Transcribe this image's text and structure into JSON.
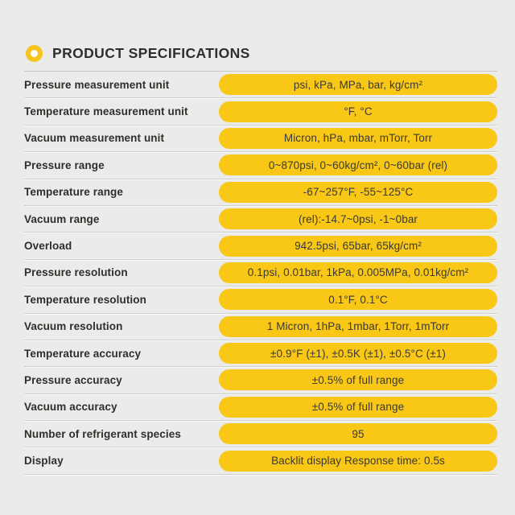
{
  "header": {
    "title": "PRODUCT SPECIFICATIONS",
    "icon": "bullet-ring-icon"
  },
  "colors": {
    "background": "#ebebe9",
    "accent_yellow": "#f9c716",
    "label_text": "#2e2e2c",
    "pill_text": "#3a3a38",
    "separator": "#cfcfcd"
  },
  "specs": [
    {
      "label": "Pressure measurement unit",
      "value": "psi, kPa, MPa, bar, kg/cm²"
    },
    {
      "label": "Temperature measurement unit",
      "value": "°F, °C"
    },
    {
      "label": "Vacuum measurement unit",
      "value": "Micron, hPa, mbar, mTorr, Torr"
    },
    {
      "label": "Pressure range",
      "value": "0~870psi, 0~60kg/cm², 0~60bar (rel)"
    },
    {
      "label": "Temperature range",
      "value": "-67~257°F, -55~125°C"
    },
    {
      "label": "Vacuum range",
      "value": "(rel):-14.7~0psi, -1~0bar"
    },
    {
      "label": "Overload",
      "value": "942.5psi, 65bar, 65kg/cm²"
    },
    {
      "label": "Pressure resolution",
      "value": "0.1psi, 0.01bar, 1kPa, 0.005MPa, 0.01kg/cm²"
    },
    {
      "label": "Temperature resolution",
      "value": "0.1°F, 0.1°C"
    },
    {
      "label": "Vacuum resolution",
      "value": "1 Micron, 1hPa, 1mbar, 1Torr, 1mTorr"
    },
    {
      "label": "Temperature accuracy",
      "value": "±0.9°F (±1), ±0.5K (±1), ±0.5°C (±1)"
    },
    {
      "label": "Pressure accuracy",
      "value": "±0.5% of full range"
    },
    {
      "label": "Vacuum accuracy",
      "value": "±0.5% of full range"
    },
    {
      "label": "Number of refrigerant species",
      "value": "95"
    },
    {
      "label": "Display",
      "value": "Backlit display Response time:  0.5s"
    }
  ]
}
